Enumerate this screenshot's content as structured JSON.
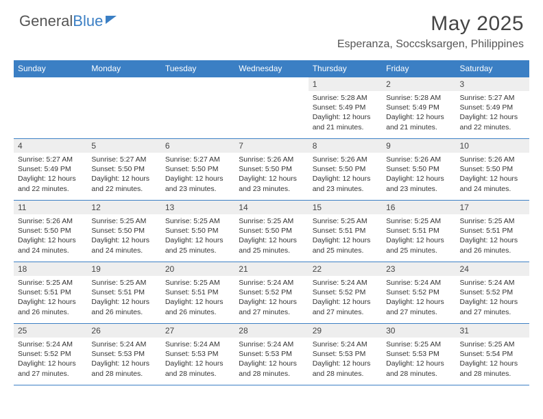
{
  "logo": {
    "text1": "General",
    "text2": "Blue"
  },
  "title": "May 2025",
  "location": "Esperanza, Soccsksargen, Philippines",
  "colors": {
    "accent": "#3b7fc4",
    "header_bg": "#3b7fc4",
    "header_text": "#ffffff",
    "daynum_bg": "#eeeeee",
    "text": "#333333",
    "border": "#3b7fc4"
  },
  "weekdays": [
    "Sunday",
    "Monday",
    "Tuesday",
    "Wednesday",
    "Thursday",
    "Friday",
    "Saturday"
  ],
  "weeks": [
    [
      null,
      null,
      null,
      null,
      {
        "n": "1",
        "sr": "5:28 AM",
        "ss": "5:49 PM",
        "dl": "12 hours and 21 minutes."
      },
      {
        "n": "2",
        "sr": "5:28 AM",
        "ss": "5:49 PM",
        "dl": "12 hours and 21 minutes."
      },
      {
        "n": "3",
        "sr": "5:27 AM",
        "ss": "5:49 PM",
        "dl": "12 hours and 22 minutes."
      }
    ],
    [
      {
        "n": "4",
        "sr": "5:27 AM",
        "ss": "5:49 PM",
        "dl": "12 hours and 22 minutes."
      },
      {
        "n": "5",
        "sr": "5:27 AM",
        "ss": "5:50 PM",
        "dl": "12 hours and 22 minutes."
      },
      {
        "n": "6",
        "sr": "5:27 AM",
        "ss": "5:50 PM",
        "dl": "12 hours and 23 minutes."
      },
      {
        "n": "7",
        "sr": "5:26 AM",
        "ss": "5:50 PM",
        "dl": "12 hours and 23 minutes."
      },
      {
        "n": "8",
        "sr": "5:26 AM",
        "ss": "5:50 PM",
        "dl": "12 hours and 23 minutes."
      },
      {
        "n": "9",
        "sr": "5:26 AM",
        "ss": "5:50 PM",
        "dl": "12 hours and 23 minutes."
      },
      {
        "n": "10",
        "sr": "5:26 AM",
        "ss": "5:50 PM",
        "dl": "12 hours and 24 minutes."
      }
    ],
    [
      {
        "n": "11",
        "sr": "5:26 AM",
        "ss": "5:50 PM",
        "dl": "12 hours and 24 minutes."
      },
      {
        "n": "12",
        "sr": "5:25 AM",
        "ss": "5:50 PM",
        "dl": "12 hours and 24 minutes."
      },
      {
        "n": "13",
        "sr": "5:25 AM",
        "ss": "5:50 PM",
        "dl": "12 hours and 25 minutes."
      },
      {
        "n": "14",
        "sr": "5:25 AM",
        "ss": "5:50 PM",
        "dl": "12 hours and 25 minutes."
      },
      {
        "n": "15",
        "sr": "5:25 AM",
        "ss": "5:51 PM",
        "dl": "12 hours and 25 minutes."
      },
      {
        "n": "16",
        "sr": "5:25 AM",
        "ss": "5:51 PM",
        "dl": "12 hours and 25 minutes."
      },
      {
        "n": "17",
        "sr": "5:25 AM",
        "ss": "5:51 PM",
        "dl": "12 hours and 26 minutes."
      }
    ],
    [
      {
        "n": "18",
        "sr": "5:25 AM",
        "ss": "5:51 PM",
        "dl": "12 hours and 26 minutes."
      },
      {
        "n": "19",
        "sr": "5:25 AM",
        "ss": "5:51 PM",
        "dl": "12 hours and 26 minutes."
      },
      {
        "n": "20",
        "sr": "5:25 AM",
        "ss": "5:51 PM",
        "dl": "12 hours and 26 minutes."
      },
      {
        "n": "21",
        "sr": "5:24 AM",
        "ss": "5:52 PM",
        "dl": "12 hours and 27 minutes."
      },
      {
        "n": "22",
        "sr": "5:24 AM",
        "ss": "5:52 PM",
        "dl": "12 hours and 27 minutes."
      },
      {
        "n": "23",
        "sr": "5:24 AM",
        "ss": "5:52 PM",
        "dl": "12 hours and 27 minutes."
      },
      {
        "n": "24",
        "sr": "5:24 AM",
        "ss": "5:52 PM",
        "dl": "12 hours and 27 minutes."
      }
    ],
    [
      {
        "n": "25",
        "sr": "5:24 AM",
        "ss": "5:52 PM",
        "dl": "12 hours and 27 minutes."
      },
      {
        "n": "26",
        "sr": "5:24 AM",
        "ss": "5:53 PM",
        "dl": "12 hours and 28 minutes."
      },
      {
        "n": "27",
        "sr": "5:24 AM",
        "ss": "5:53 PM",
        "dl": "12 hours and 28 minutes."
      },
      {
        "n": "28",
        "sr": "5:24 AM",
        "ss": "5:53 PM",
        "dl": "12 hours and 28 minutes."
      },
      {
        "n": "29",
        "sr": "5:24 AM",
        "ss": "5:53 PM",
        "dl": "12 hours and 28 minutes."
      },
      {
        "n": "30",
        "sr": "5:25 AM",
        "ss": "5:53 PM",
        "dl": "12 hours and 28 minutes."
      },
      {
        "n": "31",
        "sr": "5:25 AM",
        "ss": "5:54 PM",
        "dl": "12 hours and 28 minutes."
      }
    ]
  ],
  "labels": {
    "sunrise": "Sunrise:",
    "sunset": "Sunset:",
    "daylight": "Daylight:"
  }
}
